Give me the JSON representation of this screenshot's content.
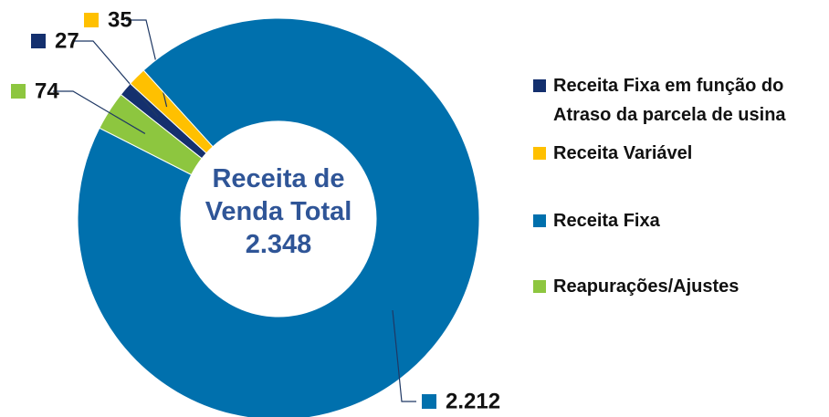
{
  "chart_data": {
    "type": "donut",
    "center_title": "Receita de Venda Total",
    "center_value": "2.348",
    "categories": [
      "Receita Fixa em função do Atraso da parcela de usina",
      "Receita Variável",
      "Receita Fixa",
      "Reapurações/Ajustes"
    ],
    "values": [
      27,
      35,
      2212,
      74
    ],
    "value_labels": [
      "27",
      "35",
      "2.212",
      "74"
    ],
    "colors": [
      "#14306e",
      "#ffc000",
      "#0070ad",
      "#8dc63f"
    ],
    "legend": "right"
  }
}
